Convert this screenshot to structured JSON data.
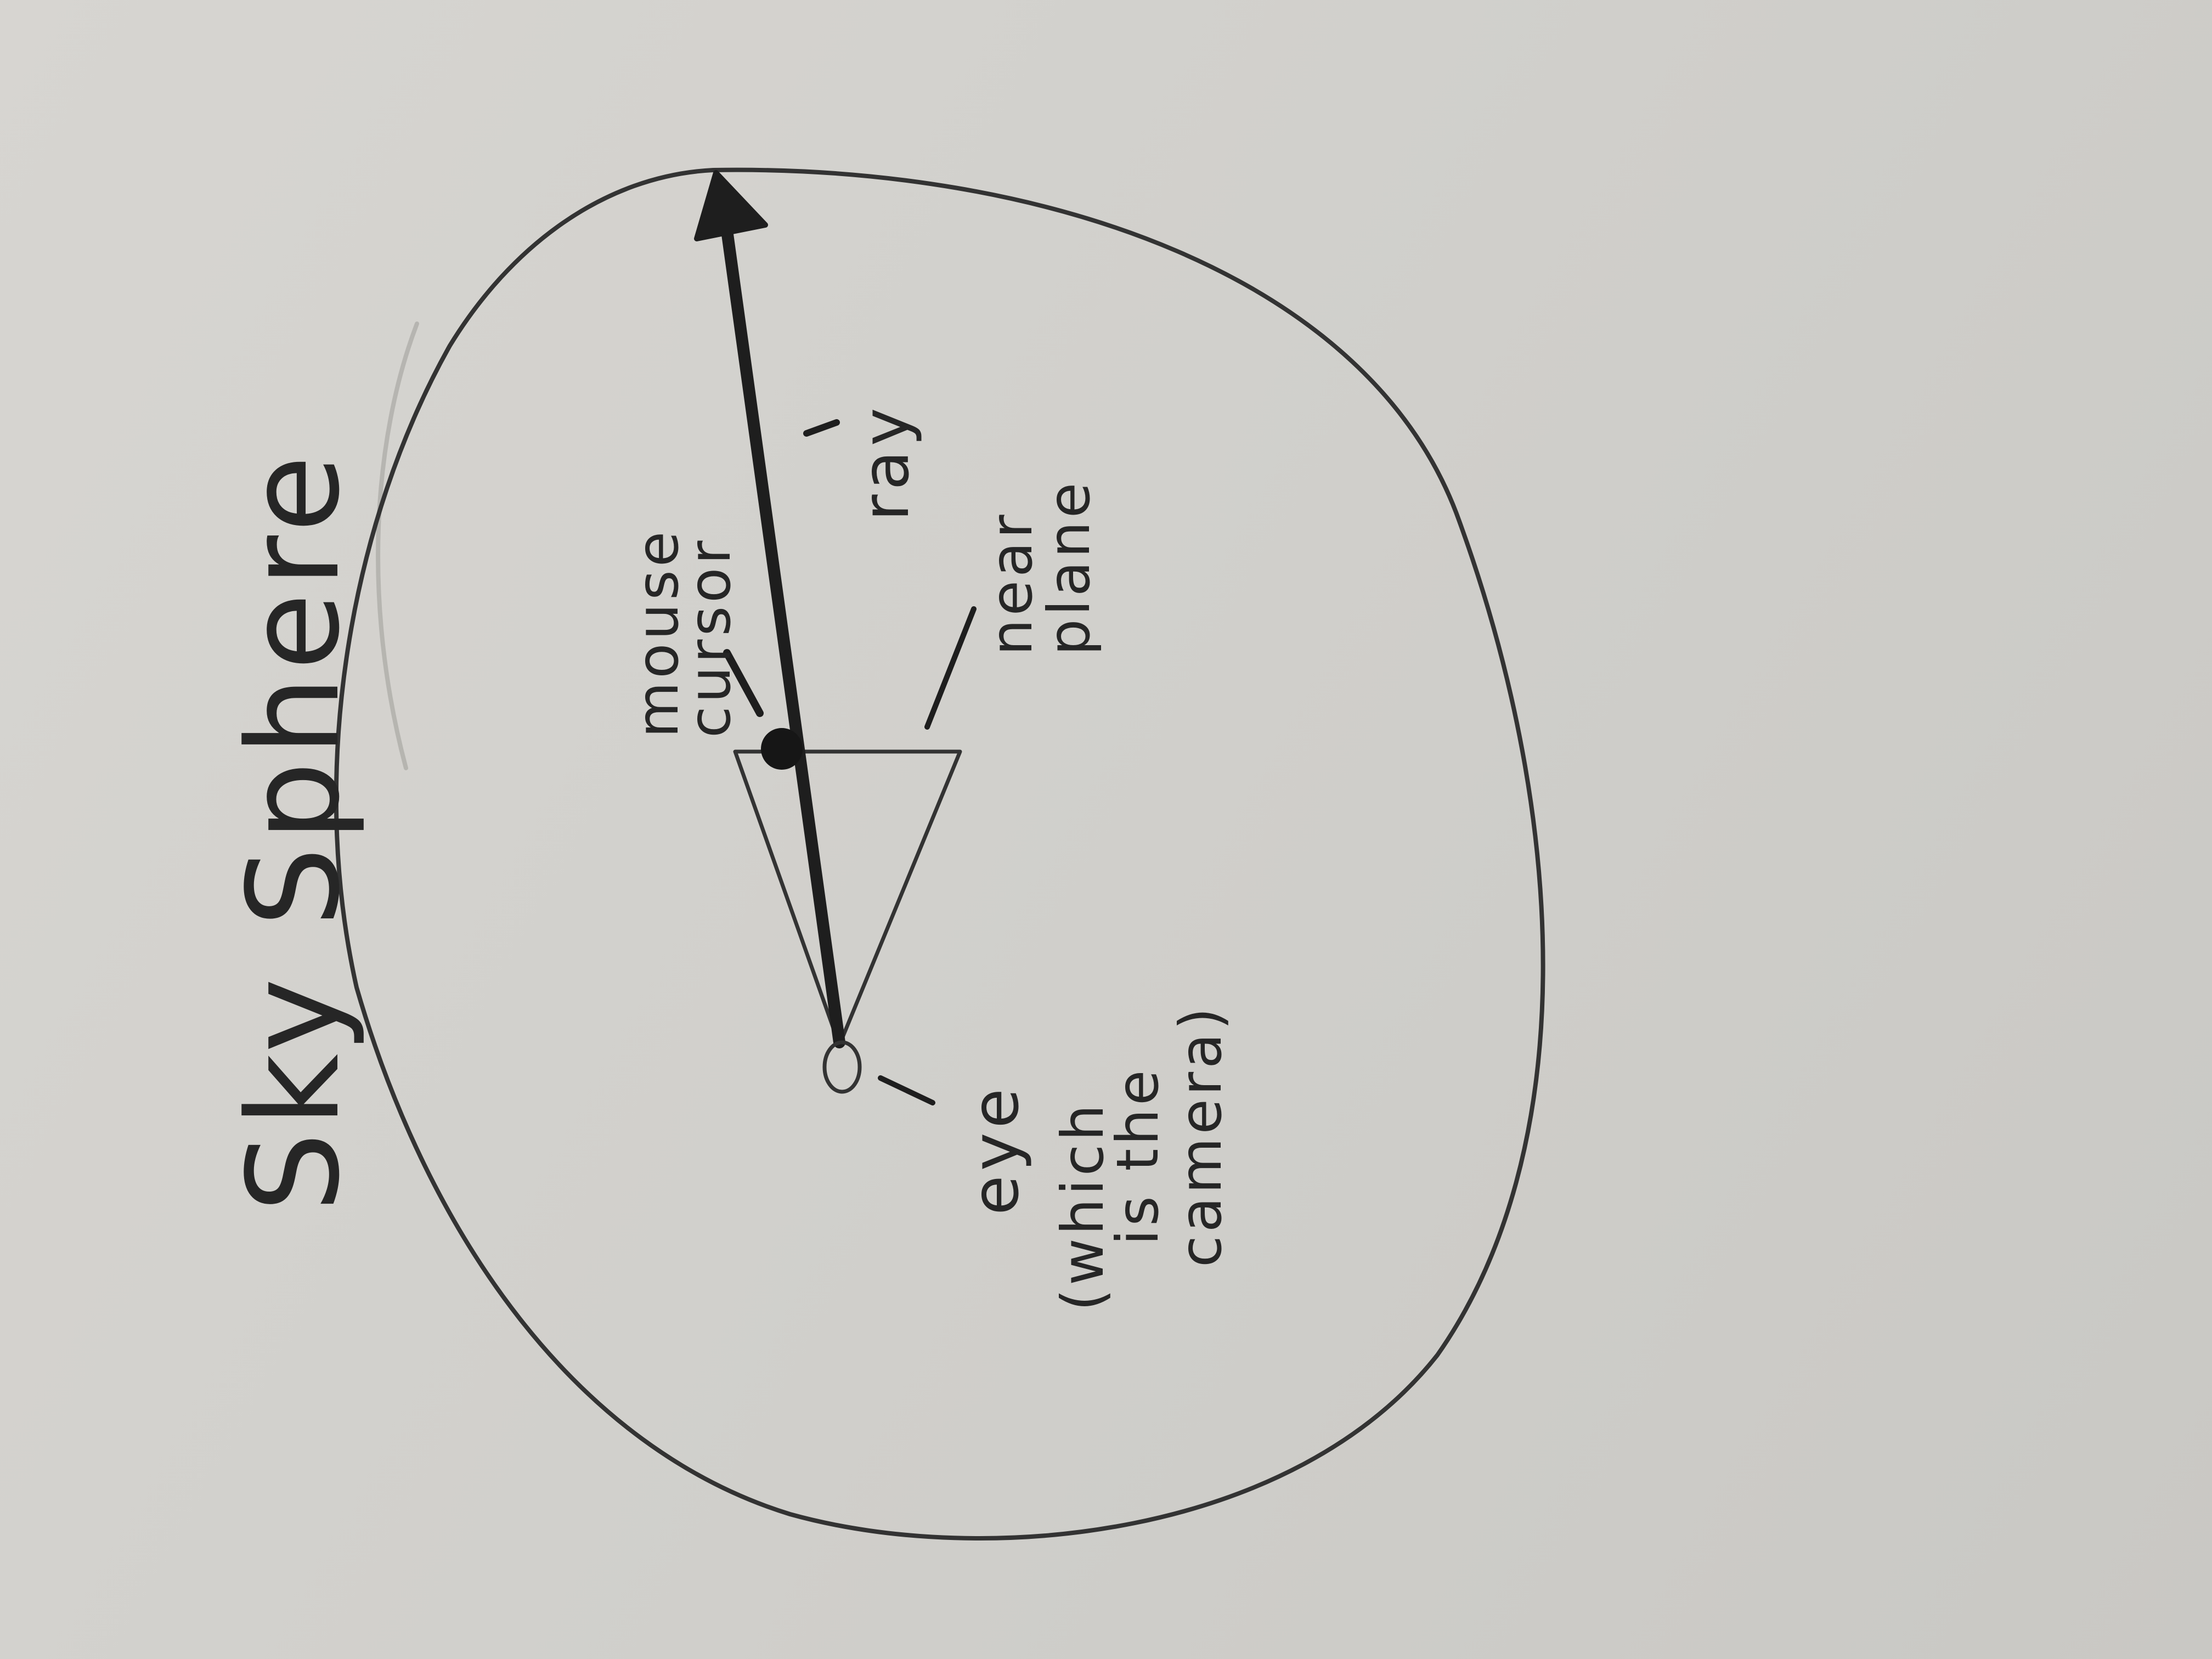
{
  "diagram": {
    "title": "Sky Sphere",
    "labels": {
      "mouse_cursor": [
        "mouse",
        "cursor"
      ],
      "ray": "ray",
      "near_plane": [
        "near",
        "plane"
      ],
      "eye": [
        "eye",
        "(which",
        "is the",
        "camera)"
      ]
    },
    "colors": {
      "ink": "#262626",
      "paper": "#d3d2ce",
      "faint_pencil": "#a9a8a4"
    },
    "elements": [
      "sky-sphere-circle",
      "view-frustum",
      "ray-arrow",
      "mouse-cursor-point",
      "eye-point"
    ]
  }
}
